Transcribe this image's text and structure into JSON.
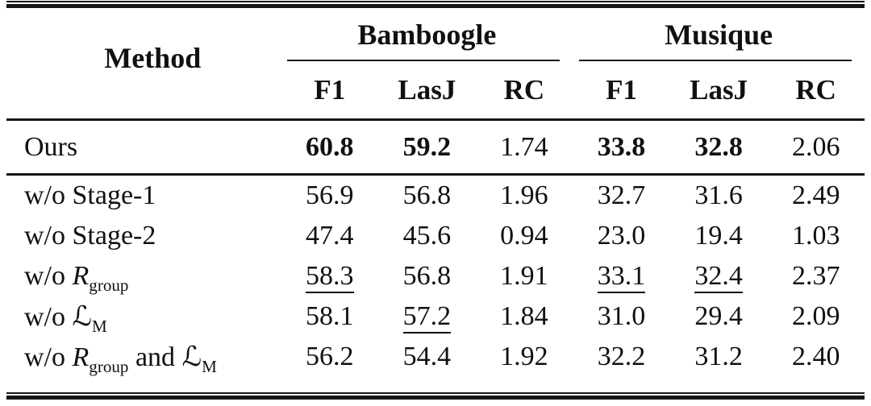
{
  "colors": {
    "background": "#ffffff",
    "text": "#111111",
    "rule": "#161616"
  },
  "table": {
    "header": {
      "method_label": "Method",
      "groups": [
        {
          "label": "Bamboogle",
          "columns": [
            "F1",
            "LasJ",
            "RC"
          ]
        },
        {
          "label": "Musique",
          "columns": [
            "F1",
            "LasJ",
            "RC"
          ]
        }
      ]
    },
    "sections": [
      {
        "name": "main",
        "rows": [
          {
            "method": [
              {
                "t": "text",
                "v": "Ours"
              }
            ],
            "values": [
              {
                "v": "60.8",
                "bold": true
              },
              {
                "v": "59.2",
                "bold": true
              },
              {
                "v": "1.74"
              },
              {
                "v": "33.8",
                "bold": true
              },
              {
                "v": "32.8",
                "bold": true
              },
              {
                "v": "2.06"
              }
            ]
          }
        ]
      },
      {
        "name": "ablation",
        "rows": [
          {
            "method": [
              {
                "t": "text",
                "v": "w/o Stage-1"
              }
            ],
            "values": [
              {
                "v": "56.9"
              },
              {
                "v": "56.8"
              },
              {
                "v": "1.96"
              },
              {
                "v": "32.7"
              },
              {
                "v": "31.6"
              },
              {
                "v": "2.49"
              }
            ]
          },
          {
            "method": [
              {
                "t": "text",
                "v": "w/o Stage-2"
              }
            ],
            "values": [
              {
                "v": "47.4"
              },
              {
                "v": "45.6"
              },
              {
                "v": "0.94"
              },
              {
                "v": "23.0"
              },
              {
                "v": "19.4"
              },
              {
                "v": "1.03"
              }
            ]
          },
          {
            "method": [
              {
                "t": "text",
                "v": "w/o "
              },
              {
                "t": "mathit",
                "v": "R"
              },
              {
                "t": "sub",
                "v": "group"
              }
            ],
            "values": [
              {
                "v": "58.3",
                "underline": true
              },
              {
                "v": "56.8"
              },
              {
                "v": "1.91"
              },
              {
                "v": "33.1",
                "underline": true
              },
              {
                "v": "32.4",
                "underline": true
              },
              {
                "v": "2.37"
              }
            ]
          },
          {
            "method": [
              {
                "t": "text",
                "v": "w/o "
              },
              {
                "t": "script",
                "v": "ℒ"
              },
              {
                "t": "sub",
                "v": "M"
              }
            ],
            "values": [
              {
                "v": "58.1"
              },
              {
                "v": "57.2",
                "underline": true
              },
              {
                "v": "1.84"
              },
              {
                "v": "31.0"
              },
              {
                "v": "29.4"
              },
              {
                "v": "2.09"
              }
            ]
          },
          {
            "method": [
              {
                "t": "text",
                "v": "w/o "
              },
              {
                "t": "mathit",
                "v": "R"
              },
              {
                "t": "sub",
                "v": "group"
              },
              {
                "t": "text",
                "v": " and "
              },
              {
                "t": "script",
                "v": "ℒ"
              },
              {
                "t": "sub",
                "v": "M"
              }
            ],
            "values": [
              {
                "v": "56.2"
              },
              {
                "v": "54.4"
              },
              {
                "v": "1.92"
              },
              {
                "v": "32.2"
              },
              {
                "v": "31.2"
              },
              {
                "v": "2.40"
              }
            ]
          }
        ]
      }
    ]
  }
}
